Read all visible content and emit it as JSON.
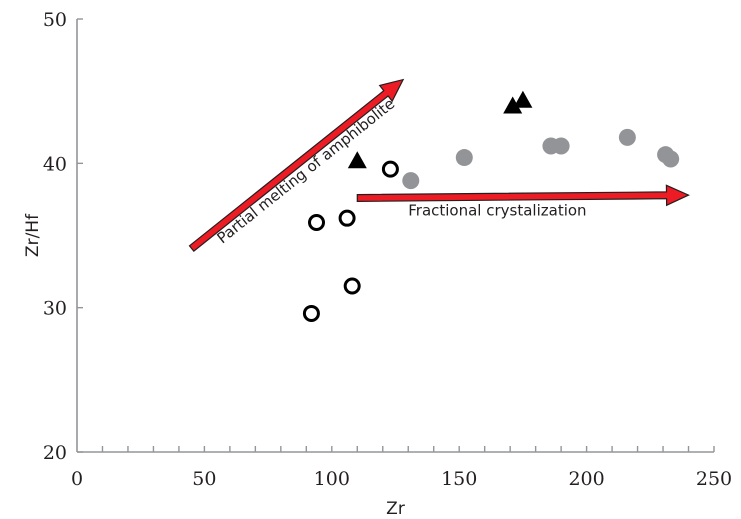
{
  "chart_data": {
    "type": "scatter",
    "title": "",
    "xlabel": "Zr",
    "ylabel": "Zr/Hf",
    "xlim": [
      0,
      250
    ],
    "ylim": [
      20,
      50
    ],
    "x_ticks": [
      "0",
      "50",
      "100",
      "150",
      "200",
      "250"
    ],
    "y_ticks": [
      "20",
      "30",
      "40",
      "50"
    ],
    "x_minor_step": 10,
    "grid": false,
    "legend": "none",
    "series": [
      {
        "marker": "open-circle",
        "color": "#000000",
        "x": [
          92,
          94,
          106,
          108,
          123
        ],
        "y": [
          29.6,
          35.9,
          36.2,
          31.5,
          39.6
        ]
      },
      {
        "marker": "filled-circle",
        "color": "#929497",
        "x": [
          131,
          152,
          186,
          190,
          216,
          231,
          233
        ],
        "y": [
          38.8,
          40.4,
          41.2,
          41.2,
          41.8,
          40.6,
          40.3
        ]
      },
      {
        "marker": "filled-triangle",
        "color": "#000000",
        "x": [
          110,
          171,
          175
        ],
        "y": [
          40.1,
          43.9,
          44.3
        ]
      }
    ],
    "annotations": [
      {
        "name": "partial-melting-arrow",
        "text": "Partial melting of amphibolite",
        "from": [
          45,
          34.1
        ],
        "to": [
          128,
          45.8
        ],
        "label_anchor": [
          57,
          34.4
        ]
      },
      {
        "name": "fractional-crystallization-arrow",
        "text": "Fractional crystalization",
        "from": [
          110,
          37.6
        ],
        "to": [
          240,
          37.8
        ],
        "label_anchor": [
          130,
          36.4
        ]
      }
    ],
    "colors": {
      "axis": "#939598",
      "text": "#231f20",
      "arrow_fill": "#ed1c24",
      "arrow_stroke": "#231f20"
    }
  }
}
